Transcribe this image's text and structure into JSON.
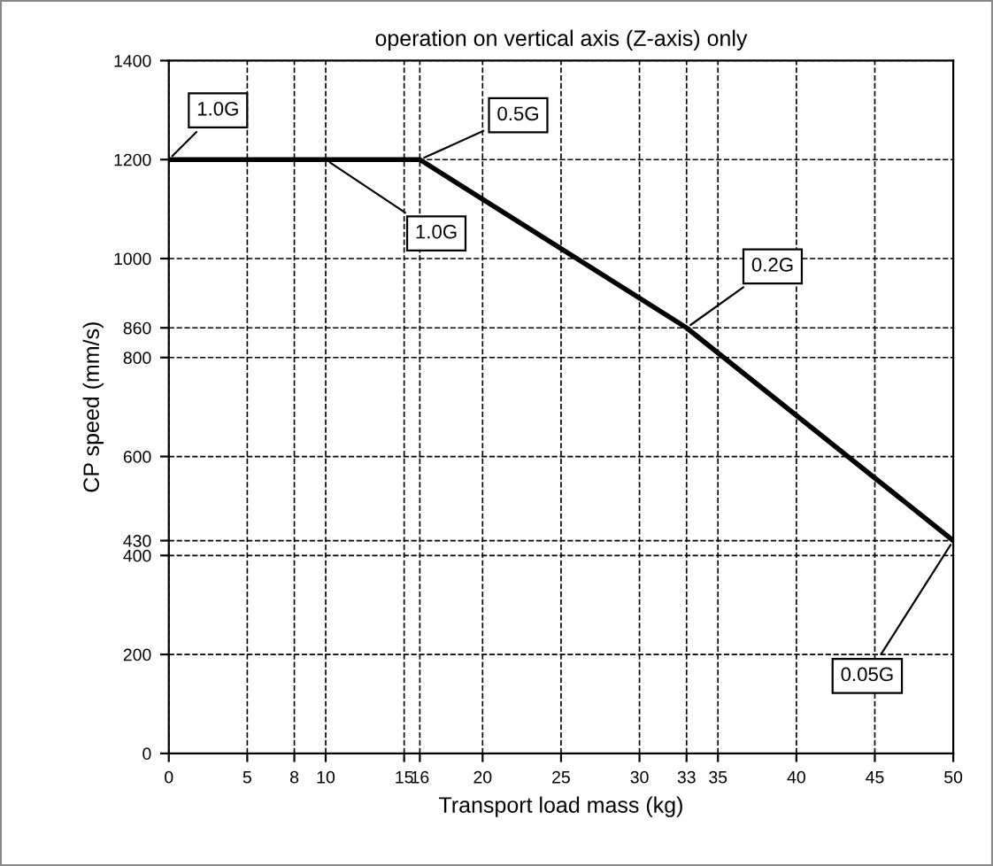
{
  "chart_data": {
    "type": "line",
    "title": "operation on vertical axis (Z-axis) only",
    "xlabel": "Transport load mass (kg)",
    "ylabel": "CP speed (mm/s)",
    "x": [
      0,
      16,
      33,
      50
    ],
    "series": [
      {
        "color": "#000000",
        "values": [
          1200,
          1200,
          860,
          430
        ]
      }
    ],
    "xlim": [
      0,
      50
    ],
    "xticks": [
      0,
      5,
      8,
      10,
      15,
      16,
      20,
      25,
      30,
      33,
      35,
      40,
      45,
      50
    ],
    "ylim": [
      0,
      1400
    ],
    "yticks": [
      0,
      200,
      400,
      430,
      600,
      800,
      860,
      1000,
      1200,
      1400
    ],
    "grid": true,
    "marker": "none",
    "line_style": "solid",
    "annotations": [
      {
        "text": "1.0G",
        "x": 0,
        "y": 1200
      },
      {
        "text": "1.0G",
        "x": 10,
        "y": 1200
      },
      {
        "text": "0.5G",
        "x": 16,
        "y": 1200
      },
      {
        "text": "0.2G",
        "x": 33,
        "y": 860
      },
      {
        "text": "0.05G",
        "x": 50,
        "y": 430
      }
    ]
  }
}
